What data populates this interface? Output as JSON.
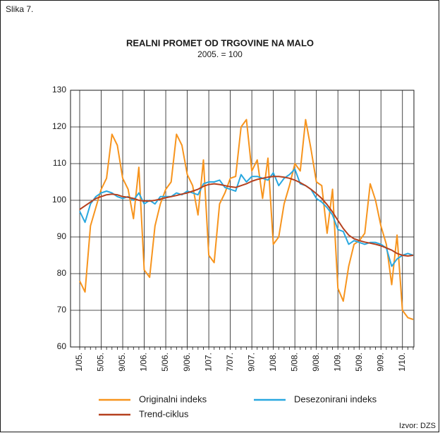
{
  "chart_data": {
    "type": "line",
    "figure_label": "Slika 7.",
    "title": "REALNI PROMET OD TRGOVINE NA MALO",
    "subtitle": "2005. = 100",
    "source": "Izvor: DZS",
    "categories": [
      "1/05.",
      null,
      null,
      null,
      "5/05.",
      null,
      null,
      null,
      "9/05.",
      null,
      null,
      null,
      "1/06.",
      null,
      null,
      null,
      "5/06.",
      null,
      null,
      null,
      "9/06.",
      null,
      null,
      null,
      "1/07.",
      null,
      null,
      null,
      "7/07.",
      null,
      null,
      null,
      "9/07.",
      null,
      null,
      null,
      "1/08.",
      null,
      null,
      null,
      "5/08.",
      null,
      null,
      null,
      "9/08.",
      null,
      null,
      null,
      "1/09.",
      null,
      null,
      null,
      "5/09.",
      null,
      null,
      null,
      "9/09.",
      null,
      null,
      null,
      "1/10.",
      null,
      null
    ],
    "series": [
      {
        "name": "Originalni indeks",
        "color": "#f7941d",
        "values": [
          78,
          75,
          93,
          98,
          103,
          106,
          118,
          115,
          106,
          103,
          95,
          109,
          81,
          79,
          93,
          99,
          103,
          105,
          118,
          115,
          107,
          104,
          96,
          111,
          85,
          83,
          99,
          102,
          106,
          106.5,
          120,
          122,
          108,
          111,
          100.5,
          111.5,
          88,
          90,
          99,
          104,
          110,
          108,
          122,
          114,
          105,
          104,
          91,
          103,
          76,
          72.5,
          82,
          88,
          89,
          91,
          104.5,
          100,
          93,
          88,
          77,
          90.5,
          70,
          68,
          67.5
        ]
      },
      {
        "name": "Desezonirani indeks",
        "color": "#29a8e0",
        "values": [
          97,
          94,
          99,
          101,
          102,
          102.5,
          102,
          101,
          100.5,
          101,
          100,
          102,
          99,
          100,
          99,
          101,
          101,
          101,
          102,
          101.5,
          102.5,
          102,
          101.5,
          104.5,
          105,
          105,
          105.5,
          103.5,
          103,
          102.5,
          107,
          105,
          106.5,
          106.5,
          106,
          105.5,
          107.5,
          104,
          106,
          107,
          108.5,
          104.5,
          104,
          103,
          100.5,
          99.5,
          98,
          96,
          92,
          91.5,
          88,
          89,
          88.5,
          88,
          88.5,
          88.5,
          88,
          87,
          82,
          84,
          85,
          85.5,
          85
        ]
      },
      {
        "name": "Trend-ciklus",
        "color": "#b5401e",
        "values": [
          97.5,
          98.5,
          99.5,
          100.5,
          101,
          101.5,
          101.7,
          101.5,
          101,
          100.8,
          100.5,
          100,
          99.8,
          99.8,
          100,
          100.3,
          100.7,
          101,
          101.3,
          101.7,
          102,
          102.5,
          103,
          103.8,
          104.3,
          104.5,
          104.3,
          104,
          103.7,
          103.5,
          104,
          104.5,
          105.2,
          105.7,
          106,
          106.3,
          106.5,
          106.5,
          106.3,
          106,
          105.5,
          104.8,
          104,
          103,
          101.8,
          100.5,
          98.8,
          96.8,
          94.5,
          92.3,
          90.5,
          89.5,
          89,
          88.6,
          88.3,
          88,
          87.6,
          87,
          86.4,
          85.5,
          85,
          84.8,
          85
        ]
      }
    ],
    "ylim": [
      60,
      130
    ],
    "yticks": [
      60,
      70,
      80,
      90,
      100,
      110,
      120,
      130
    ],
    "grid": true
  }
}
